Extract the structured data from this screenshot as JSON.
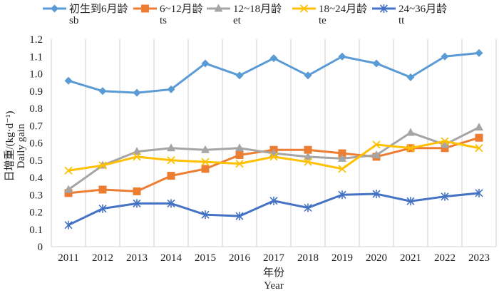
{
  "chart_data": {
    "type": "line",
    "title": "",
    "xlabel_cn": "年份",
    "xlabel_en": "Year",
    "ylabel_cn": "日增重/(kg·d⁻¹)",
    "ylabel_en": "Daily gain",
    "ylim": [
      0,
      1.2
    ],
    "yticks": [
      0,
      0.1,
      0.2,
      0.3,
      0.4,
      0.5,
      0.6,
      0.7,
      0.8,
      0.9,
      1.0,
      1.1,
      1.2
    ],
    "ytick_labels": [
      "0",
      "0.1",
      "0.2",
      "0.3",
      "0.4",
      "0.5",
      "0.6",
      "0.7",
      "0.8",
      "0.9",
      "1.0",
      "1.1",
      "1.2"
    ],
    "grid": "vertical",
    "legend_position": "top",
    "categories": [
      "2011",
      "2012",
      "2013",
      "2014",
      "2015",
      "2016",
      "2017",
      "2018",
      "2019",
      "2020",
      "2021",
      "2022",
      "2023"
    ],
    "series": [
      {
        "name": "初生到6月龄",
        "code": "sb",
        "color": "#5b9bd5",
        "marker": "diamond",
        "values": [
          0.96,
          0.9,
          0.89,
          0.91,
          1.06,
          0.99,
          1.09,
          0.99,
          1.1,
          1.06,
          0.98,
          1.1,
          1.12
        ]
      },
      {
        "name": "6~12月龄",
        "code": "ts",
        "color": "#ed7d31",
        "marker": "square",
        "values": [
          0.31,
          0.33,
          0.32,
          0.41,
          0.45,
          0.53,
          0.56,
          0.56,
          0.54,
          0.52,
          0.57,
          0.57,
          0.63
        ]
      },
      {
        "name": "12~18月龄",
        "code": "et",
        "color": "#a5a5a5",
        "marker": "triangle",
        "values": [
          0.33,
          0.47,
          0.55,
          0.57,
          0.56,
          0.57,
          0.54,
          0.52,
          0.51,
          0.53,
          0.66,
          0.59,
          0.69
        ]
      },
      {
        "name": "18~24月龄",
        "code": "te",
        "color": "#ffc000",
        "marker": "x",
        "values": [
          0.44,
          0.47,
          0.52,
          0.5,
          0.49,
          0.48,
          0.52,
          0.49,
          0.45,
          0.59,
          0.57,
          0.61,
          0.57
        ]
      },
      {
        "name": "24~36月龄",
        "code": "tt",
        "color": "#4472c4",
        "marker": "star",
        "values": [
          0.125,
          0.22,
          0.25,
          0.25,
          0.185,
          0.177,
          0.265,
          0.225,
          0.3,
          0.305,
          0.263,
          0.29,
          0.31
        ]
      }
    ]
  }
}
